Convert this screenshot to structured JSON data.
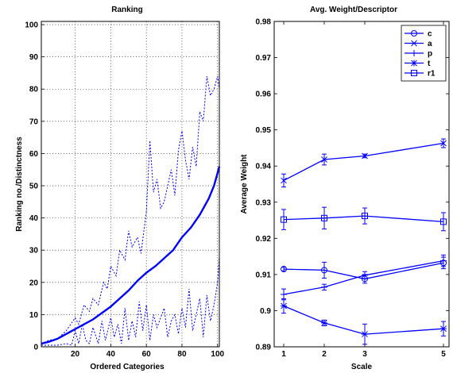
{
  "chart_data": [
    {
      "type": "line",
      "title": "Ranking",
      "xlabel": "Ordered Categories",
      "ylabel": "Ranking no./Distinctness",
      "xlim": [
        1,
        101
      ],
      "ylim": [
        0,
        101
      ],
      "xticks": [
        20,
        40,
        60,
        80,
        100
      ],
      "yticks": [
        0,
        10,
        20,
        30,
        40,
        50,
        60,
        70,
        80,
        90,
        100
      ],
      "grid": true,
      "series_color": "#0000ff",
      "series": [
        {
          "style": "solid",
          "x": [
            1,
            5,
            10,
            15,
            20,
            25,
            30,
            35,
            40,
            45,
            50,
            55,
            60,
            65,
            70,
            75,
            80,
            85,
            90,
            95,
            98,
            100,
            101
          ],
          "y": [
            1,
            1.5,
            2.5,
            4,
            5.5,
            7,
            8.5,
            10.5,
            12.5,
            15,
            17.5,
            20.5,
            23,
            25,
            27.5,
            30,
            34,
            37,
            41,
            46,
            50,
            54,
            56
          ]
        },
        {
          "style": "dotted",
          "x": [
            1,
            5,
            10,
            15,
            20,
            22,
            25,
            28,
            30,
            33,
            36,
            38,
            40,
            43,
            45,
            48,
            50,
            52,
            55,
            57,
            60,
            62,
            64,
            66,
            68,
            70,
            72,
            74,
            76,
            78,
            80,
            82,
            84,
            86,
            88,
            90,
            92,
            94,
            96,
            98,
            100,
            101
          ],
          "y": [
            1,
            2,
            2.5,
            5,
            9,
            7,
            13,
            11,
            15,
            13,
            20,
            18,
            25,
            22,
            30,
            27,
            36,
            31,
            34,
            29,
            42,
            64,
            48,
            52,
            43,
            45,
            50,
            55,
            47,
            61,
            67,
            58,
            52,
            62,
            56,
            73,
            70,
            84,
            78,
            80,
            84,
            80
          ]
        },
        {
          "style": "dotted",
          "x": [
            1,
            10,
            15,
            18,
            20,
            22,
            24,
            26,
            28,
            30,
            33,
            35,
            37,
            40,
            42,
            44,
            46,
            48,
            50,
            52,
            54,
            56,
            58,
            60,
            62,
            64,
            66,
            68,
            70,
            72,
            74,
            76,
            78,
            80,
            82,
            84,
            86,
            88,
            90,
            92,
            94,
            96,
            98,
            100,
            101
          ],
          "y": [
            0.5,
            0.5,
            1,
            0.5,
            5,
            1,
            7,
            2,
            1,
            6,
            1,
            8,
            2,
            9,
            3,
            7,
            1,
            12,
            2,
            8,
            3,
            14,
            5,
            13,
            2,
            10,
            6,
            9,
            12,
            3,
            8,
            10,
            4,
            12,
            6,
            18,
            5,
            10,
            15,
            3,
            16,
            8,
            13,
            20,
            28
          ]
        }
      ]
    },
    {
      "type": "line",
      "title": "Avg. Weight/Descriptor",
      "xlabel": "Scale",
      "ylabel": "Average Weight",
      "x_categories": [
        "1",
        "2",
        "3",
        "5"
      ],
      "ylim": [
        0.89,
        0.98
      ],
      "yticks": [
        "0.89",
        "0.9",
        "0.91",
        "0.92",
        "0.93",
        "0.94",
        "0.95",
        "0.96",
        "0.97",
        "0.98"
      ],
      "grid": false,
      "legend_position": "top-right",
      "series_color": "#0000ff",
      "series": [
        {
          "name": "c",
          "marker": "circle",
          "values": [
            0.9115,
            0.9112,
            0.9088,
            0.9132
          ],
          "errors": [
            0.0005,
            0.0022,
            0.0012,
            0.0016
          ]
        },
        {
          "name": "a",
          "marker": "x",
          "values": [
            0.936,
            0.9418,
            0.9428,
            0.9463
          ],
          "errors": [
            0.0018,
            0.0015,
            0.0005,
            0.0012
          ]
        },
        {
          "name": "p",
          "marker": "plus",
          "values": [
            0.9045,
            0.9065,
            0.9098,
            0.9138
          ],
          "errors": [
            0.0015,
            0.0008,
            0.001,
            0.0016
          ]
        },
        {
          "name": "t",
          "marker": "star",
          "values": [
            0.9013,
            0.8966,
            0.8935,
            0.895
          ],
          "errors": [
            0.002,
            0.0008,
            0.0028,
            0.002
          ]
        },
        {
          "name": "r1",
          "marker": "square",
          "values": [
            0.9252,
            0.9256,
            0.9262,
            0.9246
          ],
          "errors": [
            0.0028,
            0.003,
            0.0022,
            0.0025
          ]
        }
      ]
    }
  ]
}
